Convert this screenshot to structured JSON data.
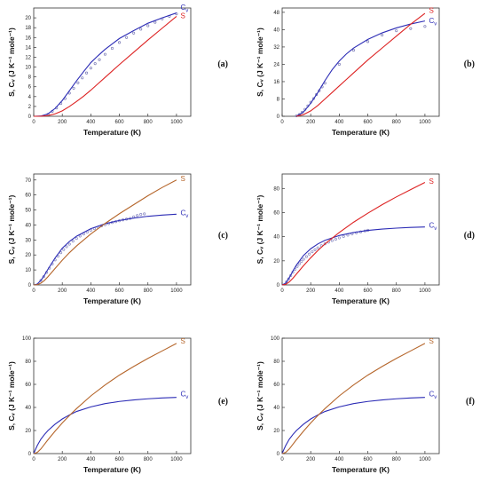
{
  "figure": {
    "xlabel": "Temperature (K)",
    "ylabel": "S, Cᵥ  (J K⁻¹ mole⁻¹)",
    "s_label": "S",
    "cv_label_main": "C",
    "cv_label_sub": "v"
  },
  "chart_data": [
    {
      "type": "line",
      "panel": "(a)",
      "xlim": [
        0,
        1100
      ],
      "ylim": [
        0,
        22
      ],
      "xticks": [
        0,
        200,
        400,
        600,
        800,
        1000
      ],
      "yticks": [
        0,
        2,
        4,
        6,
        8,
        10,
        12,
        14,
        16,
        18,
        20
      ],
      "series": [
        {
          "name": "Cv",
          "color": "#2b2bb5",
          "x": [
            0,
            50,
            100,
            150,
            200,
            250,
            300,
            350,
            400,
            450,
            500,
            600,
            700,
            800,
            900,
            1000
          ],
          "y": [
            0,
            0.05,
            0.5,
            1.6,
            3.2,
            5.2,
            7.2,
            9.1,
            10.9,
            12.3,
            13.6,
            15.8,
            17.4,
            18.9,
            20.0,
            21.0
          ]
        },
        {
          "name": "S",
          "color": "#dd2222",
          "x": [
            0,
            50,
            100,
            150,
            200,
            250,
            300,
            350,
            400,
            450,
            500,
            600,
            700,
            800,
            900,
            1000
          ],
          "y": [
            0,
            0.01,
            0.15,
            0.5,
            1.1,
            2.0,
            3.0,
            4.1,
            5.3,
            6.6,
            7.9,
            10.5,
            13.0,
            15.5,
            17.9,
            20.3
          ]
        }
      ],
      "markers": {
        "color": "#7a7ab5",
        "x": [
          100,
          130,
          160,
          190,
          220,
          250,
          280,
          310,
          340,
          370,
          400,
          430,
          460,
          500,
          550,
          600,
          650,
          700,
          750,
          800,
          850,
          900,
          950,
          1000
        ],
        "y": [
          0.4,
          1.0,
          1.7,
          2.6,
          3.6,
          4.7,
          5.7,
          6.8,
          7.8,
          8.8,
          9.8,
          10.7,
          11.5,
          12.6,
          13.8,
          15.0,
          16.0,
          16.9,
          17.7,
          18.4,
          19.1,
          19.8,
          20.3,
          20.8
        ]
      },
      "labels": {
        "cv_at": [
          1010,
          21.8
        ],
        "s_at": [
          1010,
          20.3
        ]
      }
    },
    {
      "type": "line",
      "panel": "(b)",
      "xlim": [
        0,
        1100
      ],
      "ylim": [
        0,
        50
      ],
      "xticks": [
        0,
        200,
        400,
        600,
        800,
        1000
      ],
      "yticks": [
        0,
        8,
        16,
        24,
        32,
        40,
        48
      ],
      "series": [
        {
          "name": "Cv",
          "color": "#2b2bb5",
          "x": [
            100,
            150,
            200,
            250,
            300,
            350,
            400,
            450,
            500,
            600,
            700,
            800,
            900,
            1000
          ],
          "y": [
            0,
            2,
            6,
            11,
            16.5,
            21.5,
            25.5,
            28.8,
            31.5,
            35.5,
            38.5,
            40.8,
            42.6,
            44.0
          ]
        },
        {
          "name": "S",
          "color": "#dd2222",
          "x": [
            100,
            150,
            200,
            250,
            300,
            350,
            400,
            450,
            500,
            600,
            700,
            800,
            900,
            1000
          ],
          "y": [
            0,
            0.8,
            2.5,
            5,
            8,
            11,
            14,
            17,
            20,
            26,
            31.5,
            37,
            42.5,
            47.5
          ]
        }
      ],
      "markers": {
        "color": "#7a7ab5",
        "x": [
          100,
          120,
          140,
          160,
          180,
          200,
          220,
          240,
          260,
          280,
          300,
          400,
          500,
          600,
          700,
          800,
          900,
          1000
        ],
        "y": [
          0.2,
          0.8,
          1.8,
          3.2,
          4.8,
          6.5,
          8.2,
          10.0,
          11.8,
          13.6,
          15.3,
          24,
          30.5,
          34.5,
          37.5,
          39.5,
          40.5,
          41.5
        ]
      },
      "labels": {
        "cv_at": [
          1010,
          43.5
        ],
        "s_at": [
          1010,
          48.5
        ]
      }
    },
    {
      "type": "line",
      "panel": "(c)",
      "xlim": [
        0,
        1100
      ],
      "ylim": [
        0,
        74
      ],
      "xticks": [
        0,
        200,
        400,
        600,
        800,
        1000
      ],
      "yticks": [
        0,
        10,
        20,
        30,
        40,
        50,
        60,
        70
      ],
      "series": [
        {
          "name": "Cv",
          "color": "#2b2bb5",
          "x": [
            0,
            25,
            50,
            75,
            100,
            150,
            200,
            250,
            300,
            400,
            500,
            600,
            700,
            800,
            900,
            1000
          ],
          "y": [
            0,
            0.6,
            3,
            6.5,
            10.5,
            18,
            24.5,
            29,
            32.5,
            37.5,
            40.8,
            43,
            44.6,
            45.8,
            46.6,
            47.2
          ]
        },
        {
          "name": "S",
          "color": "#b5652a",
          "x": [
            0,
            25,
            50,
            75,
            100,
            150,
            200,
            250,
            300,
            400,
            500,
            600,
            700,
            800,
            900,
            1000
          ],
          "y": [
            0,
            0.2,
            1.2,
            3,
            5.5,
            11,
            16.5,
            21.5,
            26,
            34,
            41,
            47.5,
            53.5,
            59.5,
            65,
            70
          ]
        }
      ],
      "markers": {
        "color": "#8585c0",
        "x": [
          50,
          70,
          90,
          110,
          130,
          150,
          170,
          190,
          210,
          230,
          250,
          275,
          300,
          325,
          350,
          375,
          400,
          425,
          450,
          475,
          500,
          525,
          550,
          575,
          600,
          625,
          650,
          675,
          700,
          725,
          750,
          775
        ],
        "y": [
          3,
          5.5,
          8.3,
          11.2,
          14,
          16.7,
          19.2,
          21.5,
          23.6,
          25.5,
          27.2,
          29.2,
          31,
          32.6,
          34,
          35.3,
          36.5,
          37.5,
          38.5,
          39.4,
          40.2,
          40.9,
          41.6,
          42.2,
          42.8,
          43.4,
          43.9,
          44.4,
          45.4,
          46.3,
          47,
          47.4
        ]
      },
      "labels": {
        "cv_at": [
          1010,
          47.2
        ],
        "s_at": [
          1010,
          70.5
        ]
      }
    },
    {
      "type": "line",
      "panel": "(d)",
      "xlim": [
        0,
        1100
      ],
      "ylim": [
        0,
        92
      ],
      "xticks": [
        0,
        200,
        400,
        600,
        800,
        1000
      ],
      "yticks": [
        0,
        20,
        40,
        60,
        80
      ],
      "series": [
        {
          "name": "Cv",
          "color": "#2b2bb5",
          "x": [
            0,
            25,
            50,
            75,
            100,
            150,
            200,
            250,
            300,
            400,
            500,
            600,
            700,
            800,
            900,
            1000
          ],
          "y": [
            0,
            1.5,
            6,
            11.5,
            16.5,
            24.5,
            30,
            34,
            37,
            41,
            43.5,
            45.2,
            46.3,
            47.1,
            47.7,
            48.1
          ]
        },
        {
          "name": "S",
          "color": "#dd2222",
          "x": [
            0,
            25,
            50,
            75,
            100,
            150,
            200,
            250,
            300,
            400,
            500,
            600,
            700,
            800,
            900,
            1000
          ],
          "y": [
            0,
            0.5,
            2.5,
            5.5,
            9,
            16,
            22.5,
            28.5,
            34,
            43.5,
            52,
            59.5,
            66.5,
            73,
            79,
            85
          ]
        }
      ],
      "markers": {
        "color": "#8585c0",
        "x": [
          30,
          45,
          60,
          75,
          90,
          105,
          120,
          135,
          150,
          170,
          190,
          210,
          230,
          250,
          275,
          300,
          325,
          350,
          375,
          400,
          430,
          460,
          490,
          520,
          550,
          580,
          600
        ],
        "y": [
          2.5,
          5,
          7.8,
          10.5,
          13,
          15.3,
          17.5,
          19.5,
          21.3,
          23.5,
          25.6,
          27.5,
          29.2,
          30.8,
          32.5,
          34.1,
          35.5,
          36.8,
          37.9,
          39,
          40.2,
          41.3,
          42.3,
          43.2,
          44,
          44.8,
          45.3
        ]
      },
      "labels": {
        "cv_at": [
          1010,
          48.1
        ],
        "s_at": [
          1010,
          85.5
        ]
      }
    },
    {
      "type": "line",
      "panel": "(e)",
      "xlim": [
        0,
        1100
      ],
      "ylim": [
        0,
        100
      ],
      "xticks": [
        0,
        200,
        400,
        600,
        800,
        1000
      ],
      "yticks": [
        0,
        20,
        40,
        60,
        80,
        100
      ],
      "series": [
        {
          "name": "Cv",
          "color": "#2b2bb5",
          "x": [
            0,
            10,
            25,
            50,
            75,
            100,
            150,
            200,
            250,
            300,
            400,
            500,
            600,
            700,
            800,
            900,
            1000
          ],
          "y": [
            0,
            3,
            7,
            12.5,
            16.5,
            20,
            25.5,
            30,
            33.5,
            36.5,
            40.5,
            43.3,
            45.2,
            46.5,
            47.5,
            48.2,
            48.7
          ]
        },
        {
          "name": "S",
          "color": "#b5652a",
          "x": [
            0,
            25,
            50,
            75,
            100,
            150,
            200,
            250,
            300,
            400,
            500,
            600,
            700,
            800,
            900,
            1000
          ],
          "y": [
            0,
            1,
            4,
            8,
            12,
            19.5,
            26.5,
            33,
            39,
            50,
            59.5,
            68,
            75.5,
            82.5,
            89,
            95.5
          ]
        }
      ],
      "labels": {
        "cv_at": [
          1010,
          50.5
        ],
        "s_at": [
          1010,
          97
        ]
      }
    },
    {
      "type": "line",
      "panel": "(f)",
      "xlim": [
        0,
        1100
      ],
      "ylim": [
        0,
        100
      ],
      "xticks": [
        0,
        200,
        400,
        600,
        800,
        1000
      ],
      "yticks": [
        0,
        20,
        40,
        60,
        80,
        100
      ],
      "series": [
        {
          "name": "Cv",
          "color": "#2b2bb5",
          "x": [
            0,
            10,
            25,
            50,
            75,
            100,
            150,
            200,
            250,
            300,
            400,
            500,
            600,
            700,
            800,
            900,
            1000
          ],
          "y": [
            0,
            3,
            7,
            12.5,
            16.5,
            20,
            25.5,
            30,
            33.5,
            36.5,
            40.5,
            43.3,
            45.2,
            46.5,
            47.5,
            48.2,
            48.7
          ]
        },
        {
          "name": "S",
          "color": "#b5652a",
          "x": [
            0,
            25,
            50,
            75,
            100,
            150,
            200,
            250,
            300,
            400,
            500,
            600,
            700,
            800,
            900,
            1000
          ],
          "y": [
            0,
            1,
            4,
            8,
            12,
            19.5,
            26.5,
            33,
            39,
            50,
            59.5,
            68,
            75.5,
            82.5,
            89,
            95.5
          ]
        }
      ],
      "labels": {
        "cv_at": [
          1010,
          50.5
        ],
        "s_at": [
          1010,
          97
        ]
      }
    }
  ]
}
